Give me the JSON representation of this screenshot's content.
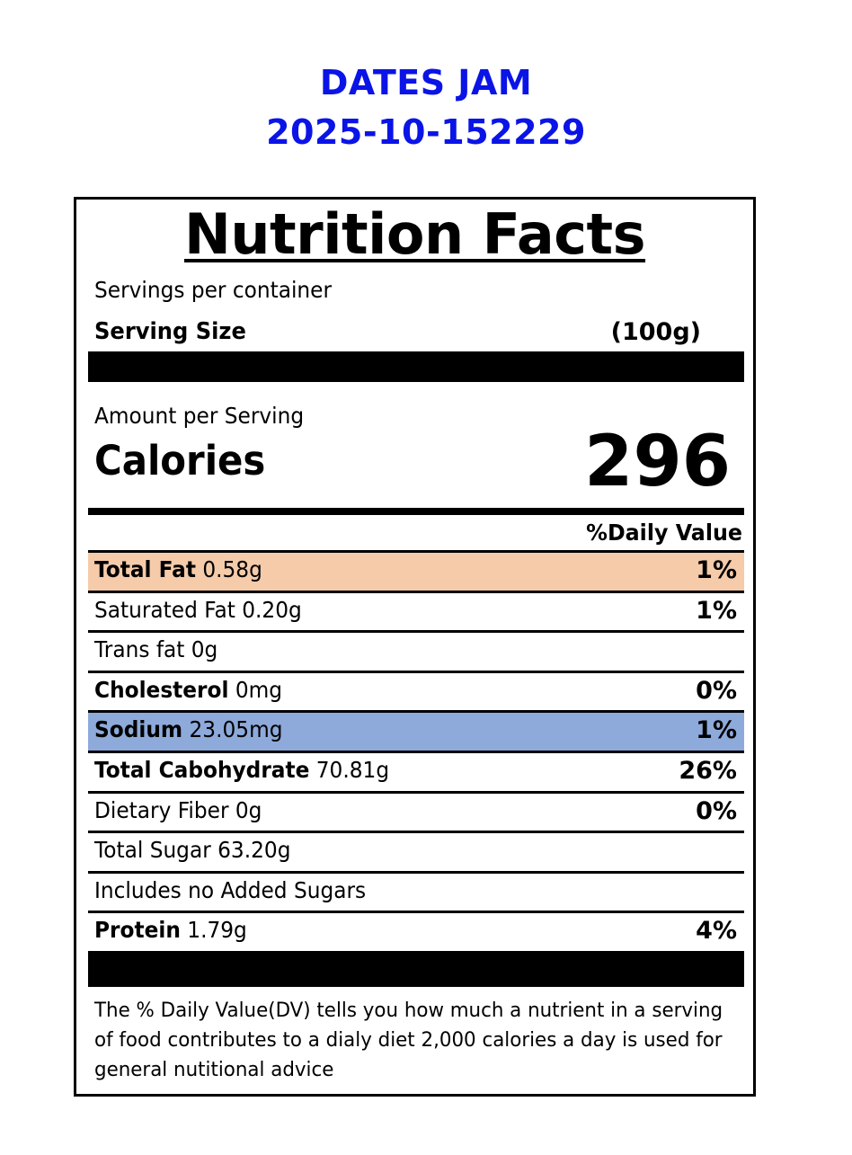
{
  "header": {
    "product": "DATES JAM",
    "code": "2025-10-152229"
  },
  "label": {
    "title": "Nutrition Facts",
    "servings_per_container": "Servings per container",
    "serving_size_label": "Serving Size",
    "serving_size_value": "(100g)",
    "amount_per_serving": "Amount per Serving",
    "calories_label": "Calories",
    "calories_value": "296",
    "daily_value_header": "%Daily Value",
    "rows": [
      {
        "name": "Total Fat",
        "amount": " 0.58g",
        "dv": "1%",
        "bold": true,
        "highlight": "#f5cbaa"
      },
      {
        "name": "Saturated Fat 0.20g",
        "amount": "",
        "dv": "1%",
        "bold": false
      },
      {
        "name": "Trans fat 0g",
        "amount": "",
        "dv": "",
        "bold": false
      },
      {
        "name": "Cholesterol",
        "amount": " 0mg",
        "dv": "0%",
        "bold": true
      },
      {
        "name": "Sodium",
        "amount": " 23.05mg",
        "dv": "1%",
        "bold": true,
        "highlight": "#8eaadb"
      },
      {
        "name": "Total Cabohydrate",
        "amount": " 70.81g",
        "dv": "26%",
        "bold": true
      },
      {
        "name": "Dietary Fiber 0g",
        "amount": "",
        "dv": "0%",
        "bold": false
      },
      {
        "name": "Total Sugar 63.20g",
        "amount": "",
        "dv": "",
        "bold": false
      },
      {
        "name": "Includes no Added Sugars",
        "amount": "",
        "dv": "",
        "bold": false
      },
      {
        "name": "Protein",
        "amount": " 1.79g",
        "dv": "4%",
        "bold": true
      }
    ],
    "footnote": "The % Daily Value(DV) tells you how much a nutrient in a serving of food contributes to a dialy diet 2,000 calories a day is used for general nutitional advice"
  }
}
